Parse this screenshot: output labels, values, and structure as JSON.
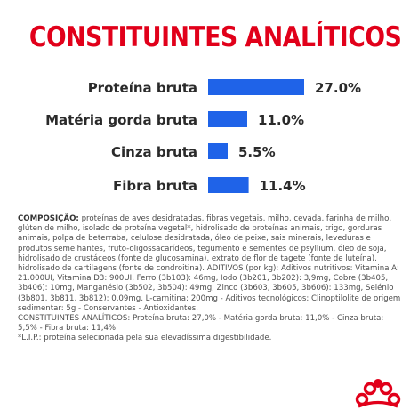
{
  "title": "CONSTITUINTES ANALÍTICOS",
  "colors": {
    "title": "#e1001a",
    "bar": "#1f63e8",
    "text": "#2a2a2a",
    "logo": "#e1001a"
  },
  "chart_data": {
    "type": "bar",
    "orientation": "horizontal",
    "categories": [
      "Proteína bruta",
      "Matéria gorda bruta",
      "Cinza bruta",
      "Fibra bruta"
    ],
    "values": [
      27.0,
      11.0,
      5.5,
      11.4
    ],
    "data_labels": [
      "27.0%",
      "11.0%",
      "5.5%",
      "11.4%"
    ],
    "unit": "%",
    "grid": false,
    "legend": "none"
  },
  "composition": {
    "label": "COMPOSIÇÃO:",
    "text": " proteínas de aves desidratadas, fibras vegetais, milho, cevada, farinha de milho, glúten de milho, isolado de proteína vegetal*, hidrolisado de proteínas animais, trigo, gorduras animais, polpa de beterraba, celulose desidratada, óleo de peixe, sais minerais, leveduras e produtos semelhantes, fruto-oligossacarídeos, tegumento e sementes de psyllium, óleo de soja, hidrolisado de crustáceos (fonte de glucosamina), extrato de flor de tagete (fonte de luteína), hidrolisado de cartilagens (fonte de condroitina). ADITIVOS (por kg): Aditivos nutritivos: Vitamina A: 21.000UI, Vitamina D3: 900UI, Ferro (3b103): 46mg, Iodo (3b201, 3b202): 3,9mg, Cobre (3b405, 3b406): 10mg, Manganésio (3b502, 3b504): 49mg, Zinco (3b603, 3b605, 3b606): 133mg, Selénio (3b801, 3b811, 3b812): 0,09mg, L-carnitina: 200mg - Aditivos tecnológicos: Clinoptilolite de origem sedimentar: 5g - Conservantes - Antioxidantes.",
    "line2": "CONSTITUINTES ANALÍTICOS: Proteína bruta: 27,0% - Matéria gorda bruta: 11,0% - Cinza bruta: 5,5% - Fibra bruta: 11,4%.",
    "line3": "*L.I.P.: proteína selecionada pela sua elevadíssima digestibilidade."
  }
}
